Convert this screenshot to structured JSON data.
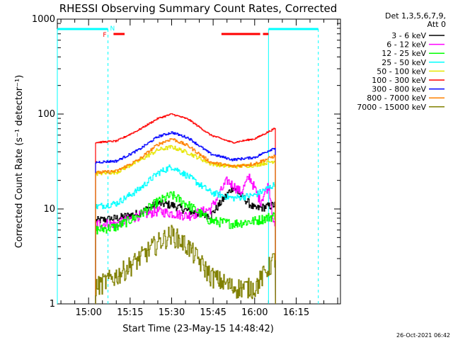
{
  "chart_data": {
    "type": "line",
    "title": "RHESSI Observing Summary Count Rates, Corrected",
    "ylabel": "Corrected Count Rate (s⁻¹ detector⁻¹)",
    "xlabel": "Start Time (23-May-15 14:48:42)",
    "footer": "26-Oct-2021 06:42",
    "yscale": "log",
    "ylim": [
      1,
      1000
    ],
    "xlim": [
      "14:48:42",
      "16:31:00"
    ],
    "yticks": [
      {
        "v": 1,
        "label": "1"
      },
      {
        "v": 10,
        "label": "10"
      },
      {
        "v": 100,
        "label": "100"
      },
      {
        "v": 1000,
        "label": "1000"
      }
    ],
    "xticks": [
      {
        "t": "15:00",
        "label": "15:00"
      },
      {
        "t": "15:15",
        "label": "15:15"
      },
      {
        "t": "15:30",
        "label": "15:30"
      },
      {
        "t": "15:45",
        "label": "15:45"
      },
      {
        "t": "16:00",
        "label": "16:00"
      },
      {
        "t": "16:15",
        "label": "16:15"
      }
    ],
    "legend_header": [
      "Det 1,3,5,6,7,9,",
      "Att 0"
    ],
    "legend_position": "right",
    "series": [
      {
        "name": "3 - 6 keV",
        "color": "#000000",
        "t": [
          "15:02",
          "15:10",
          "15:18",
          "15:25",
          "15:30",
          "15:36",
          "15:44",
          "15:52",
          "16:00",
          "16:07"
        ],
        "values": [
          7.5,
          8,
          9,
          11.5,
          11,
          9.5,
          8.5,
          17,
          10,
          11
        ]
      },
      {
        "name": "6 - 12 keV",
        "color": "#ff00ff",
        "t": [
          "15:02",
          "15:10",
          "15:18",
          "15:25",
          "15:30",
          "15:36",
          "15:44",
          "15:50",
          "15:55",
          "15:58",
          "16:02",
          "16:05",
          "16:07"
        ],
        "values": [
          7,
          7,
          8.5,
          9.5,
          9,
          8.5,
          10,
          20,
          15,
          22,
          12,
          18,
          6.5
        ]
      },
      {
        "name": "12 - 25 keV",
        "color": "#00ff00",
        "t": [
          "15:02",
          "15:10",
          "15:18",
          "15:25",
          "15:30",
          "15:36",
          "15:44",
          "15:52",
          "16:00",
          "16:07"
        ],
        "values": [
          6,
          6.5,
          8.5,
          12,
          14,
          11,
          7.5,
          7,
          7.5,
          8.5
        ]
      },
      {
        "name": "25 - 50 keV",
        "color": "#00ffff",
        "t": [
          "15:02",
          "15:10",
          "15:18",
          "15:25",
          "15:30",
          "15:36",
          "15:44",
          "15:52",
          "16:00",
          "16:07"
        ],
        "values": [
          10.5,
          11.5,
          16,
          24,
          28,
          22,
          15,
          13,
          14,
          18
        ]
      },
      {
        "name": "50 - 100 keV",
        "color": "#e6e600",
        "t": [
          "15:02",
          "15:10",
          "15:18",
          "15:25",
          "15:30",
          "15:36",
          "15:44",
          "15:52",
          "16:00",
          "16:07"
        ],
        "values": [
          23.5,
          24.5,
          32,
          42,
          45,
          39,
          30,
          28,
          29,
          32
        ]
      },
      {
        "name": "100 - 300 keV",
        "color": "#ff0000",
        "t": [
          "15:02",
          "15:10",
          "15:18",
          "15:25",
          "15:30",
          "15:36",
          "15:44",
          "15:52",
          "16:00",
          "16:07"
        ],
        "values": [
          50,
          52,
          68,
          90,
          100,
          88,
          60,
          50,
          55,
          70
        ]
      },
      {
        "name": "300 - 800 keV",
        "color": "#0000ff",
        "t": [
          "15:02",
          "15:10",
          "15:18",
          "15:25",
          "15:30",
          "15:36",
          "15:44",
          "15:52",
          "16:00",
          "16:07"
        ],
        "values": [
          31,
          32,
          42,
          58,
          64,
          56,
          38,
          33,
          35,
          44
        ]
      },
      {
        "name": "800 - 7000 keV",
        "color": "#ff8000",
        "t": [
          "15:02",
          "15:10",
          "15:18",
          "15:25",
          "15:30",
          "15:36",
          "15:44",
          "15:52",
          "16:00",
          "16:07"
        ],
        "values": [
          24,
          25,
          33,
          48,
          55,
          46,
          31,
          28,
          30,
          36
        ]
      },
      {
        "name": "7000 - 15000 keV",
        "color": "#808000",
        "t": [
          "15:02",
          "15:10",
          "15:18",
          "15:25",
          "15:30",
          "15:36",
          "15:44",
          "15:52",
          "16:00",
          "16:07"
        ],
        "values": [
          1.5,
          2,
          3,
          4.5,
          5.5,
          4,
          2,
          1.5,
          1.5,
          3
        ]
      }
    ],
    "annotations": {
      "night_bars_color": "#00ffff",
      "night_bars": [
        [
          "14:48:42",
          "15:07"
        ],
        [
          "16:05",
          "16:23"
        ]
      ],
      "night_marks": [
        {
          "t": "15:07",
          "label": "N"
        }
      ],
      "saa_dashes": [
        "15:07",
        "16:23"
      ],
      "daylight_lines": [
        "14:48:42",
        "16:05"
      ],
      "flare_color": "#ff0000",
      "flare_marks": [
        {
          "t": "15:07",
          "label": "F"
        }
      ],
      "flare_bars": [
        [
          "15:09",
          "15:13"
        ],
        [
          "15:48",
          "16:02"
        ],
        [
          "16:03",
          "16:05"
        ]
      ],
      "data_span": [
        "15:02:30",
        "16:07:30"
      ]
    }
  }
}
